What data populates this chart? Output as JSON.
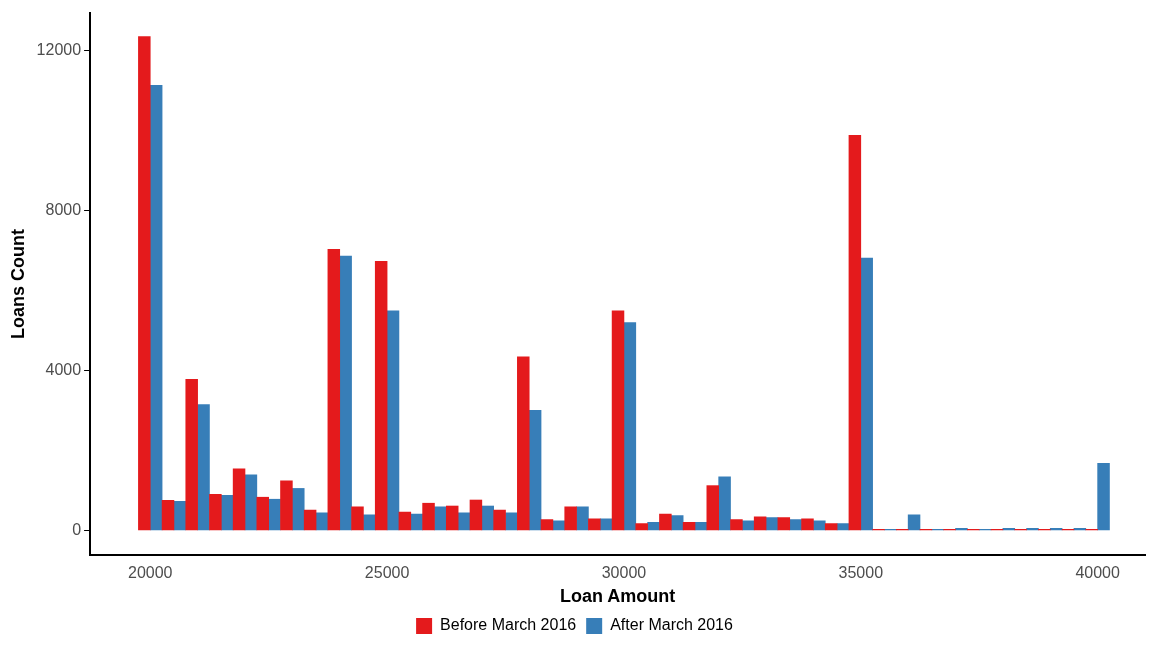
{
  "chart_data": {
    "type": "bar",
    "xlabel": "Loan Amount",
    "ylabel": "Loans Count",
    "x": [
      20000,
      20500,
      21000,
      21500,
      22000,
      22500,
      23000,
      23500,
      24000,
      24500,
      25000,
      25500,
      26000,
      26500,
      27000,
      27500,
      28000,
      28500,
      29000,
      29500,
      30000,
      30500,
      31000,
      31500,
      32000,
      32500,
      33000,
      33500,
      34000,
      34500,
      35000,
      35500,
      36000,
      36500,
      37000,
      37500,
      38000,
      38500,
      39000,
      39500,
      40000
    ],
    "series": [
      {
        "name": "Before March 2016",
        "color": "#e41a1c",
        "values": [
          12350,
          750,
          3780,
          900,
          1540,
          830,
          1240,
          510,
          7030,
          590,
          6730,
          460,
          680,
          610,
          760,
          510,
          4340,
          270,
          590,
          290,
          5490,
          170,
          410,
          200,
          1120,
          270,
          340,
          320,
          290,
          170,
          9880,
          25,
          25,
          25,
          25,
          25,
          25,
          25,
          25,
          25,
          25
        ]
      },
      {
        "name": "After March 2016",
        "color": "#377eb8",
        "values": [
          11130,
          730,
          3150,
          880,
          1390,
          780,
          1050,
          440,
          6860,
          390,
          5490,
          410,
          590,
          440,
          610,
          440,
          3000,
          240,
          590,
          290,
          5200,
          200,
          370,
          200,
          1340,
          240,
          320,
          270,
          240,
          170,
          6810,
          30,
          390,
          30,
          50,
          30,
          50,
          50,
          50,
          50,
          1680
        ]
      }
    ],
    "xlim": [
      18730,
      41000
    ],
    "xticks": [
      20000,
      25000,
      30000,
      35000,
      40000
    ],
    "ylim": [
      -620,
      12950
    ],
    "yticks": [
      0,
      4000,
      8000,
      12000
    ],
    "grid": false,
    "legend": "bottom"
  }
}
